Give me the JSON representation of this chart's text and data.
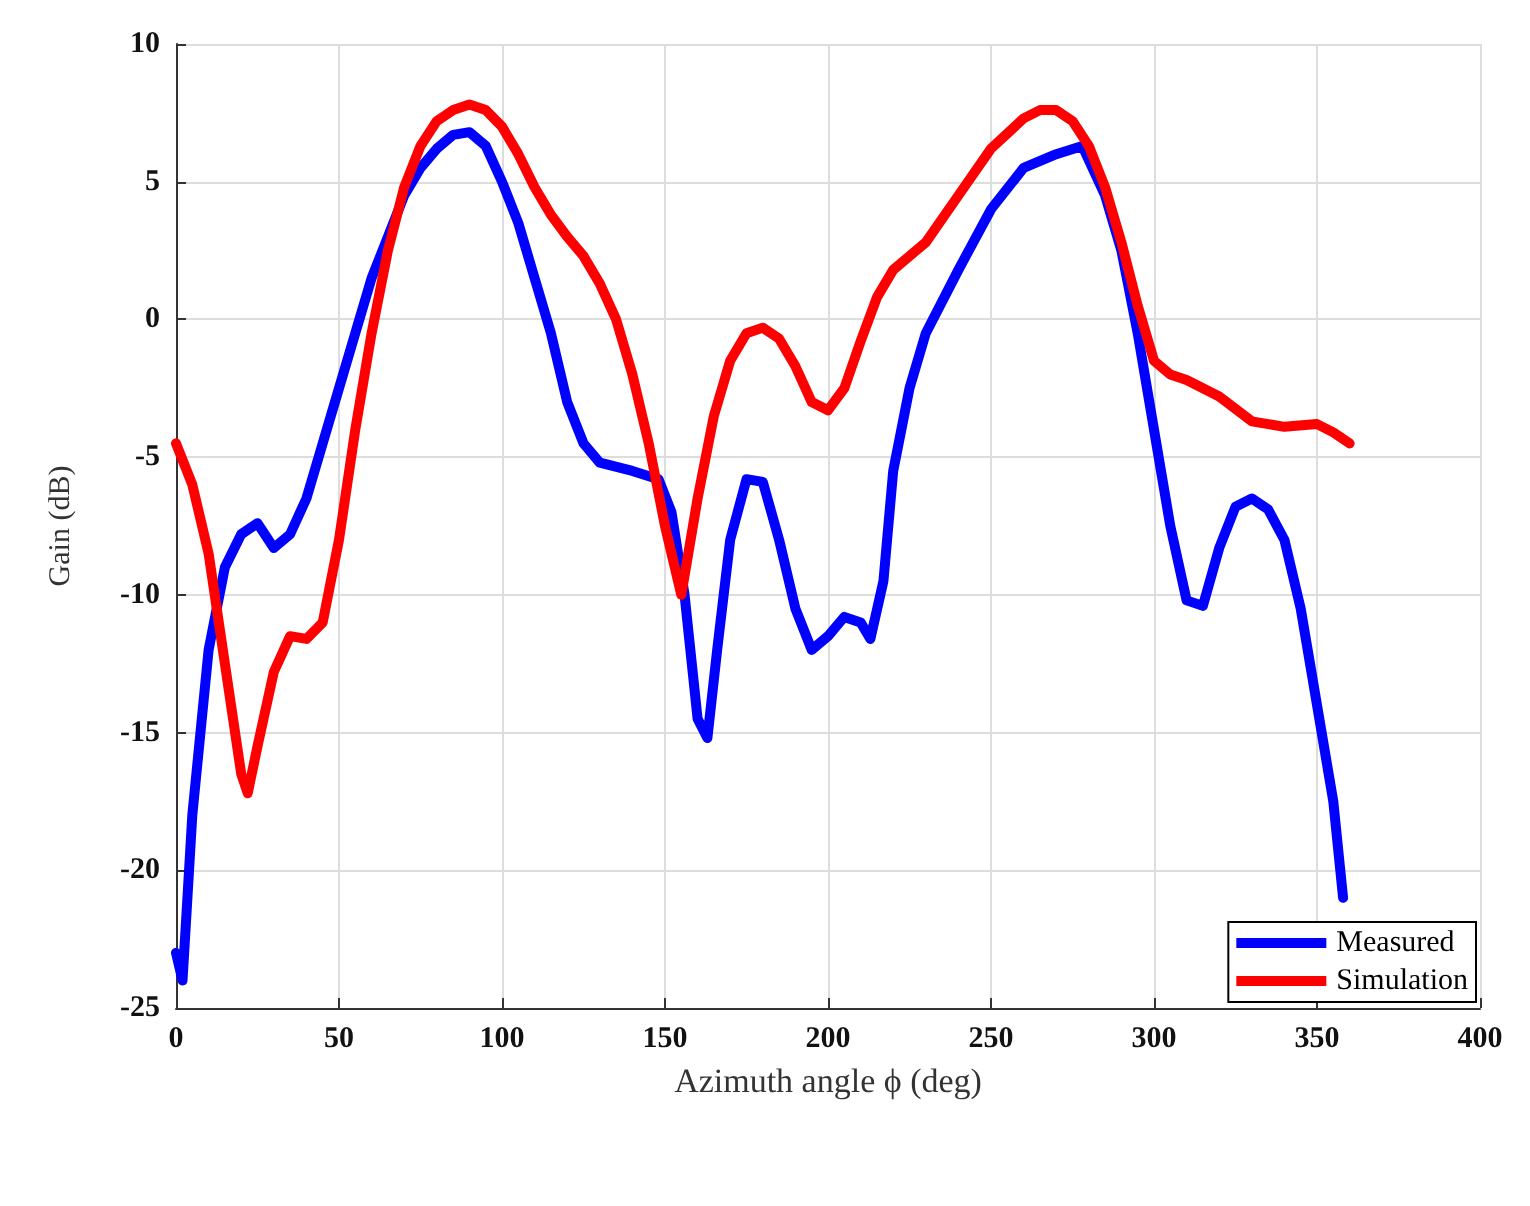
{
  "chart_data": {
    "type": "line",
    "xlabel": "Azimuth angle ϕ (deg)",
    "ylabel": "Gain (dB)",
    "xlim": [
      0,
      400
    ],
    "xticks": [
      0,
      50,
      100,
      150,
      200,
      250,
      300,
      350,
      400
    ],
    "ylim": [
      -25,
      10
    ],
    "yticks": [
      -25,
      -20,
      -15,
      -10,
      -5,
      0,
      5,
      10
    ],
    "grid": true,
    "legend": "bottom right",
    "marker": "none",
    "line_style": "solid",
    "series": [
      {
        "name": "Measured",
        "color": "#0000ff",
        "x": [
          0,
          2,
          5,
          10,
          15,
          20,
          25,
          30,
          35,
          40,
          45,
          50,
          55,
          60,
          65,
          70,
          75,
          80,
          85,
          90,
          95,
          100,
          105,
          110,
          115,
          120,
          125,
          130,
          140,
          148,
          152,
          156,
          160,
          163,
          166,
          170,
          175,
          180,
          185,
          190,
          195,
          200,
          205,
          210,
          213,
          217,
          220,
          225,
          230,
          240,
          250,
          260,
          270,
          278,
          285,
          290,
          295,
          300,
          305,
          310,
          315,
          320,
          325,
          330,
          335,
          340,
          345,
          350,
          355,
          358
        ],
        "values": [
          -23,
          -24,
          -18,
          -12,
          -9,
          -7.8,
          -7.4,
          -8.3,
          -7.8,
          -6.5,
          -4.5,
          -2.5,
          -0.5,
          1.5,
          3,
          4.5,
          5.5,
          6.2,
          6.7,
          6.8,
          6.3,
          5,
          3.5,
          1.5,
          -0.5,
          -3,
          -4.5,
          -5.2,
          -5.5,
          -5.8,
          -7,
          -10,
          -14.5,
          -15.2,
          -12,
          -8,
          -5.8,
          -5.9,
          -8,
          -10.5,
          -12,
          -11.5,
          -10.8,
          -11,
          -11.6,
          -9.5,
          -5.5,
          -2.5,
          -0.5,
          1.8,
          4,
          5.5,
          6,
          6.3,
          4.5,
          2.5,
          -0.5,
          -4,
          -7.5,
          -10.2,
          -10.4,
          -8.3,
          -6.8,
          -6.5,
          -6.9,
          -8,
          -10.5,
          -14,
          -17.5,
          -21
        ]
      },
      {
        "name": "Simulation",
        "color": "#ff0000",
        "x": [
          0,
          5,
          10,
          15,
          20,
          22,
          25,
          30,
          35,
          40,
          45,
          50,
          55,
          60,
          65,
          70,
          75,
          80,
          85,
          90,
          95,
          100,
          105,
          110,
          115,
          120,
          125,
          130,
          135,
          140,
          145,
          150,
          155,
          160,
          165,
          170,
          175,
          180,
          185,
          190,
          195,
          200,
          205,
          210,
          215,
          220,
          230,
          240,
          250,
          260,
          265,
          270,
          275,
          280,
          285,
          290,
          295,
          300,
          305,
          310,
          320,
          330,
          340,
          350,
          355,
          360
        ],
        "values": [
          -4.5,
          -6,
          -8.5,
          -12.5,
          -16.5,
          -17.2,
          -15.5,
          -12.8,
          -11.5,
          -11.6,
          -11,
          -8,
          -4,
          -0.5,
          2.5,
          4.8,
          6.3,
          7.2,
          7.6,
          7.8,
          7.6,
          7,
          6,
          4.8,
          3.8,
          3,
          2.3,
          1.3,
          0,
          -2,
          -4.5,
          -7.5,
          -10,
          -6.5,
          -3.5,
          -1.5,
          -0.5,
          -0.3,
          -0.7,
          -1.7,
          -3,
          -3.3,
          -2.5,
          -0.8,
          0.8,
          1.8,
          2.8,
          4.5,
          6.2,
          7.3,
          7.6,
          7.6,
          7.2,
          6.3,
          4.8,
          2.8,
          0.5,
          -1.5,
          -2,
          -2.2,
          -2.8,
          -3.7,
          -3.9,
          -3.8,
          -4.1,
          -4.5
        ]
      }
    ]
  }
}
